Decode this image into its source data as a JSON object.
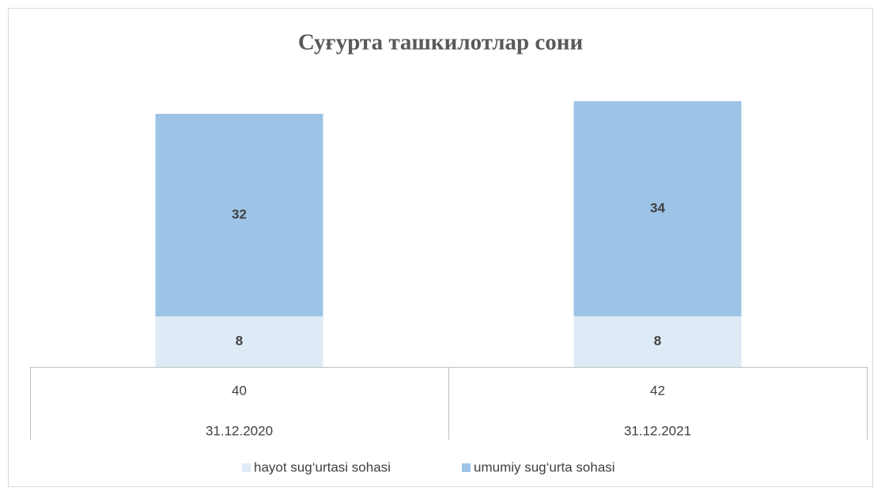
{
  "chart_data": {
    "type": "stacked_bar",
    "title": "Суғурта ташкилотлар сони",
    "categories": [
      "31.12.2020",
      "31.12.2021"
    ],
    "totals": [
      40,
      42
    ],
    "series": [
      {
        "name": "hayot sug‘urtasi sohasi",
        "color": "#deebf7",
        "values": [
          8,
          8
        ]
      },
      {
        "name": "umumiy sug‘urta sohasi",
        "color": "#9dc3e6",
        "values": [
          32,
          34
        ]
      }
    ]
  }
}
